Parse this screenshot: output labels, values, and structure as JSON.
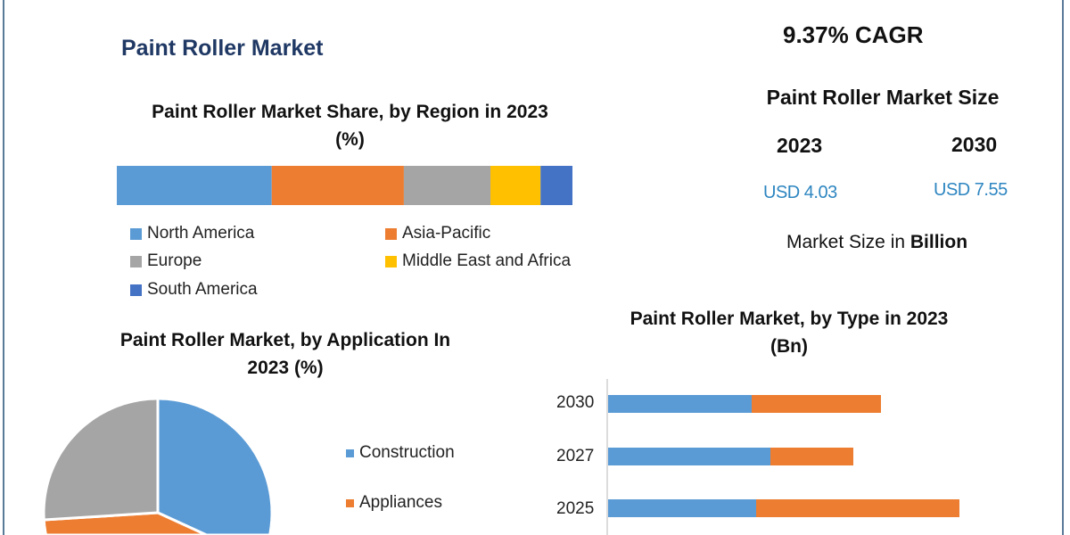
{
  "title": "Paint Roller Market",
  "cagr": "9.37% CAGR",
  "market_size": {
    "heading": "Paint Roller Market Size",
    "years": [
      "2023",
      "2030"
    ],
    "values": [
      "USD 4.03",
      "USD 7.55"
    ],
    "note_prefix": "Market Size in ",
    "note_bold": "Billion"
  },
  "chart_data": [
    {
      "type": "bar",
      "stacked": true,
      "orientation": "horizontal",
      "title_line1": "Paint Roller Market Share, by Region in 2023",
      "title_line2": "(%)",
      "categories": [
        "North America",
        "Asia-Pacific",
        "Europe",
        "Middle East and Africa",
        "South America"
      ],
      "values": [
        34,
        29,
        19,
        11,
        7
      ],
      "colors": [
        "#5b9bd5",
        "#ed7d31",
        "#a5a5a5",
        "#ffc000",
        "#4472c4"
      ],
      "legend": "bottom"
    },
    {
      "type": "pie",
      "title_line1": "Paint Roller Market, by Application In",
      "title_line2": "2023 (%)",
      "slices": [
        {
          "name": "Construction",
          "value": 43,
          "color": "#5b9bd5"
        },
        {
          "name": "Appliances",
          "value": 31,
          "color": "#ed7d31"
        },
        {
          "value": 26,
          "color": "#a5a5a5"
        }
      ],
      "legend": "right"
    },
    {
      "type": "bar",
      "stacked": true,
      "orientation": "horizontal",
      "title_line1": "Paint Roller Market, by Type in 2023",
      "title_line2": "(Bn)",
      "categories": [
        "2030",
        "2027",
        "2025"
      ],
      "series": [
        {
          "values": [
            1.61,
            1.82,
            1.66
          ],
          "color": "#5b9bd5"
        },
        {
          "values": [
            1.45,
            0.93,
            2.28
          ],
          "color": "#ed7d31"
        }
      ],
      "xlim": [
        0,
        4.5
      ],
      "grid": false
    }
  ]
}
